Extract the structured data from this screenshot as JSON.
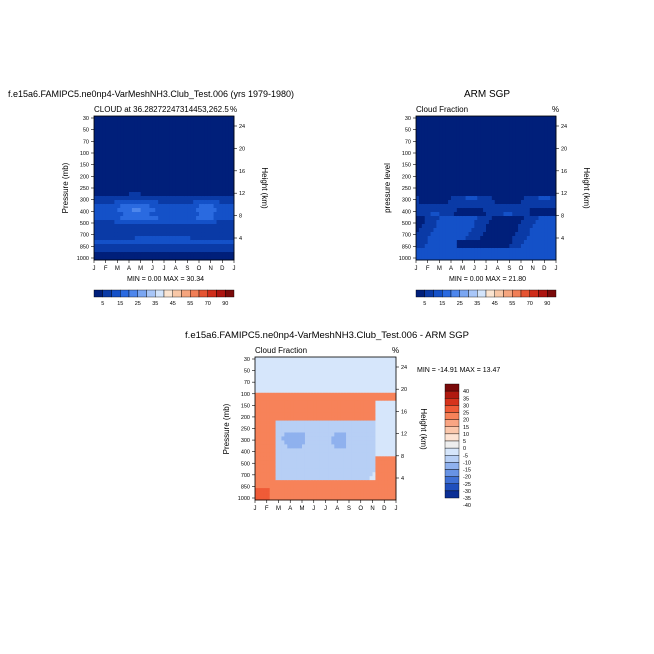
{
  "chart_data": [
    {
      "type": "heatmap",
      "panel": "model",
      "title": "f.e15a6.FAMIPC5.ne0np4-VarMeshNH3.Club_Test.006 (yrs 1979-1980)",
      "left_string": "CLOUD at 36.28272247314453,262.5",
      "right_string": "%",
      "ylabel": "Pressure (mb)",
      "ylabel_right": "Height (km)",
      "min_max": "MIN =  0.00 MAX =  30.34",
      "x_ticks": [
        "J",
        "F",
        "M",
        "A",
        "M",
        "J",
        "J",
        "A",
        "S",
        "O",
        "N",
        "D",
        "J"
      ],
      "y_ticks": [
        "30",
        "50",
        "70",
        "100",
        "150",
        "200",
        "250",
        "300",
        "400",
        "500",
        "700",
        "850",
        "1000"
      ],
      "y_ticks_right": [
        "24",
        "20",
        "16",
        "12",
        "8",
        "4"
      ],
      "z_min": 0,
      "z_max": 30.34,
      "levels": [
        5,
        10,
        15,
        20,
        25,
        30,
        35,
        40,
        45,
        50,
        55,
        60,
        65,
        70,
        75,
        80,
        85,
        90
      ],
      "colorbar_labels": [
        "5",
        "15",
        "25",
        "35",
        "45",
        "55",
        "70",
        "90"
      ]
    },
    {
      "type": "heatmap",
      "panel": "obs",
      "title": "ARM SGP",
      "left_string": "Cloud Fraction",
      "right_string": "%",
      "ylabel": "pressure level",
      "ylabel_right": "Height (km)",
      "min_max": "MIN =  0.00 MAX =  21.80",
      "x_ticks": [
        "J",
        "F",
        "M",
        "A",
        "M",
        "J",
        "J",
        "A",
        "S",
        "O",
        "N",
        "D",
        "J"
      ],
      "y_ticks": [
        "30",
        "50",
        "70",
        "100",
        "150",
        "200",
        "250",
        "300",
        "400",
        "500",
        "700",
        "850",
        "1000"
      ],
      "y_ticks_right": [
        "24",
        "20",
        "16",
        "12",
        "8",
        "4"
      ],
      "z_min": 0,
      "z_max": 21.8,
      "levels": [
        5,
        10,
        15,
        20,
        25,
        30,
        35,
        40,
        45,
        50,
        55,
        60,
        65,
        70,
        75,
        80,
        85,
        90
      ],
      "colorbar_labels": [
        "5",
        "15",
        "25",
        "35",
        "45",
        "55",
        "70",
        "90"
      ]
    },
    {
      "type": "heatmap",
      "panel": "diff",
      "title": "f.e15a6.FAMIPC5.ne0np4-VarMeshNH3.Club_Test.006 - ARM SGP",
      "left_string": "Cloud Fraction",
      "right_string": "%",
      "ylabel": "Pressure (mb)",
      "ylabel_right": "Height (km)",
      "min_max": "MIN = -14.91 MAX =  13.47",
      "x_ticks": [
        "J",
        "F",
        "M",
        "A",
        "M",
        "J",
        "J",
        "A",
        "S",
        "O",
        "N",
        "D",
        "J"
      ],
      "y_ticks": [
        "30",
        "50",
        "70",
        "100",
        "150",
        "200",
        "250",
        "300",
        "400",
        "500",
        "700",
        "850",
        "1000"
      ],
      "y_ticks_right": [
        "24",
        "20",
        "16",
        "12",
        "8",
        "4"
      ],
      "z_min": -14.91,
      "z_max": 13.47,
      "levels": [
        -40,
        -35,
        -30,
        -25,
        -20,
        -15,
        -10,
        -5,
        0,
        5,
        10,
        15,
        20,
        25,
        30,
        35,
        40
      ],
      "colorbar_labels": [
        "40",
        "35",
        "30",
        "25",
        "20",
        "15",
        "10",
        "5",
        "0",
        "-5",
        "-10",
        "-15",
        "-20",
        "-25",
        "-30",
        "-35",
        "-40"
      ]
    }
  ],
  "colors": {
    "seq": [
      "#001f7a",
      "#0a3aa6",
      "#1451c8",
      "#2a6ae0",
      "#4d86ec",
      "#7aa6f2",
      "#a8c6f8",
      "#d3e4fb",
      "#fbe4d0",
      "#f8c7a6",
      "#f5a57e",
      "#f07e56",
      "#e55432",
      "#cf2d1a",
      "#ad1410",
      "#7a0a0a"
    ],
    "div": [
      "#7a0a0a",
      "#b01a10",
      "#d6331c",
      "#ef5b37",
      "#f78259",
      "#f9a583",
      "#fbc7ab",
      "#fde3d3",
      "#eeeeee",
      "#d6e6fb",
      "#b7cff5",
      "#8fb1ee",
      "#6893e4",
      "#3f70d5",
      "#1f4fbd",
      "#0b2f95"
    ]
  }
}
